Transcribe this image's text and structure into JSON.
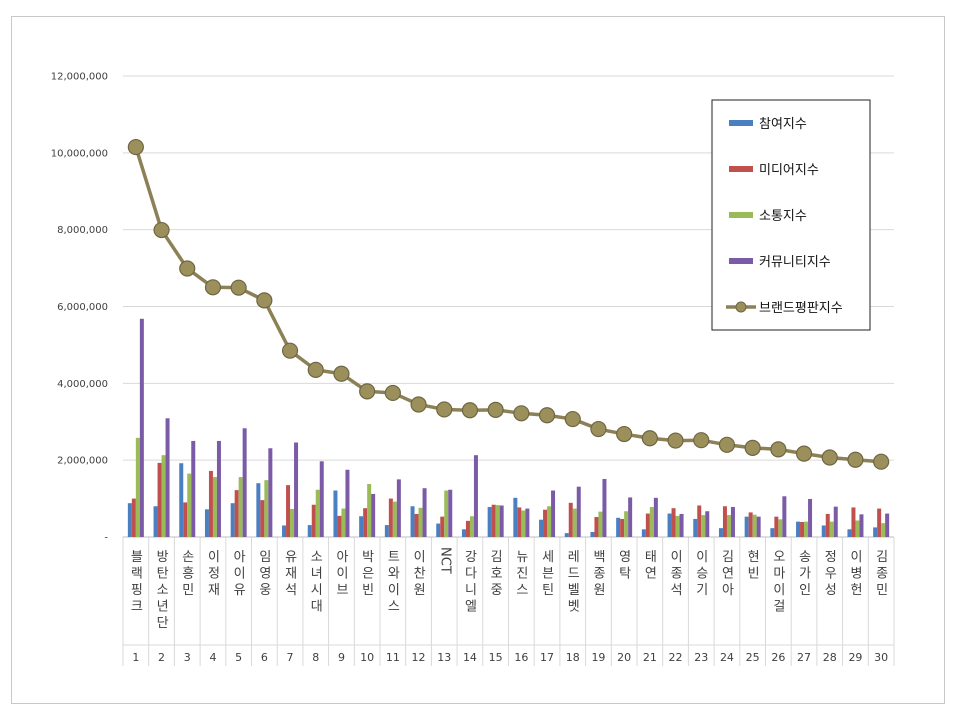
{
  "chart_data": {
    "type": "bar",
    "title": "",
    "xlabel": "",
    "ylabel": "",
    "ylim": [
      0,
      12000000
    ],
    "yticks": [
      "-",
      "2,000,000",
      "4,000,000",
      "6,000,000",
      "8,000,000",
      "10,000,000",
      "12,000,000"
    ],
    "grid": true,
    "legend_position": "top-right",
    "categories": [
      "블랙핑크",
      "방탄소년단",
      "손흥민",
      "이정재",
      "아이유",
      "임영웅",
      "유재석",
      "소녀시대",
      "아이브",
      "박은빈",
      "트와이스",
      "이찬원",
      "NCT",
      "강다니엘",
      "김호중",
      "뉴진스",
      "세븐틴",
      "레드벨벳",
      "백종원",
      "영탁",
      "태연",
      "이종석",
      "이승기",
      "김연아",
      "현빈",
      "오마이걸",
      "송가인",
      "정우성",
      "이병헌",
      "김종민"
    ],
    "ranks": [
      "1",
      "2",
      "3",
      "4",
      "5",
      "6",
      "7",
      "8",
      "9",
      "10",
      "11",
      "12",
      "13",
      "14",
      "15",
      "16",
      "17",
      "18",
      "19",
      "20",
      "21",
      "22",
      "23",
      "24",
      "25",
      "26",
      "27",
      "28",
      "29",
      "30"
    ],
    "series": [
      {
        "name": "참여지수",
        "kind": "bar",
        "color": "#4a7fc1",
        "values": [
          880000,
          800000,
          1920000,
          720000,
          880000,
          1400000,
          300000,
          310000,
          1210000,
          540000,
          310000,
          800000,
          350000,
          200000,
          780000,
          1020000,
          450000,
          100000,
          130000,
          500000,
          200000,
          610000,
          470000,
          230000,
          530000,
          230000,
          400000,
          300000,
          200000,
          250000
        ]
      },
      {
        "name": "미디어지수",
        "kind": "bar",
        "color": "#c0504d",
        "values": [
          1000000,
          1930000,
          900000,
          1720000,
          1220000,
          960000,
          1350000,
          840000,
          550000,
          750000,
          1000000,
          600000,
          530000,
          420000,
          840000,
          770000,
          710000,
          890000,
          520000,
          470000,
          610000,
          750000,
          820000,
          800000,
          640000,
          530000,
          390000,
          600000,
          770000,
          740000
        ]
      },
      {
        "name": "소통지수",
        "kind": "bar",
        "color": "#9bbb59",
        "values": [
          2580000,
          2130000,
          1650000,
          1560000,
          1560000,
          1480000,
          730000,
          1230000,
          740000,
          1380000,
          920000,
          760000,
          1210000,
          540000,
          830000,
          690000,
          800000,
          740000,
          660000,
          670000,
          780000,
          550000,
          570000,
          570000,
          580000,
          460000,
          400000,
          400000,
          430000,
          360000
        ]
      },
      {
        "name": "커뮤니티지수",
        "kind": "bar",
        "color": "#7b5ba6",
        "values": [
          5680000,
          3090000,
          2500000,
          2500000,
          2830000,
          2310000,
          2460000,
          1970000,
          1750000,
          1120000,
          1500000,
          1270000,
          1230000,
          2130000,
          820000,
          740000,
          1210000,
          1310000,
          1510000,
          1030000,
          1020000,
          600000,
          670000,
          780000,
          530000,
          1060000,
          990000,
          790000,
          590000,
          610000
        ]
      },
      {
        "name": "브랜드평판지수",
        "kind": "line",
        "color": "#8c8156",
        "values": [
          10150000,
          7990000,
          6990000,
          6500000,
          6490000,
          6160000,
          4850000,
          4350000,
          4250000,
          3790000,
          3750000,
          3450000,
          3320000,
          3300000,
          3310000,
          3220000,
          3170000,
          3070000,
          2810000,
          2680000,
          2570000,
          2510000,
          2520000,
          2400000,
          2320000,
          2280000,
          2170000,
          2070000,
          2010000,
          1960000
        ]
      }
    ]
  }
}
